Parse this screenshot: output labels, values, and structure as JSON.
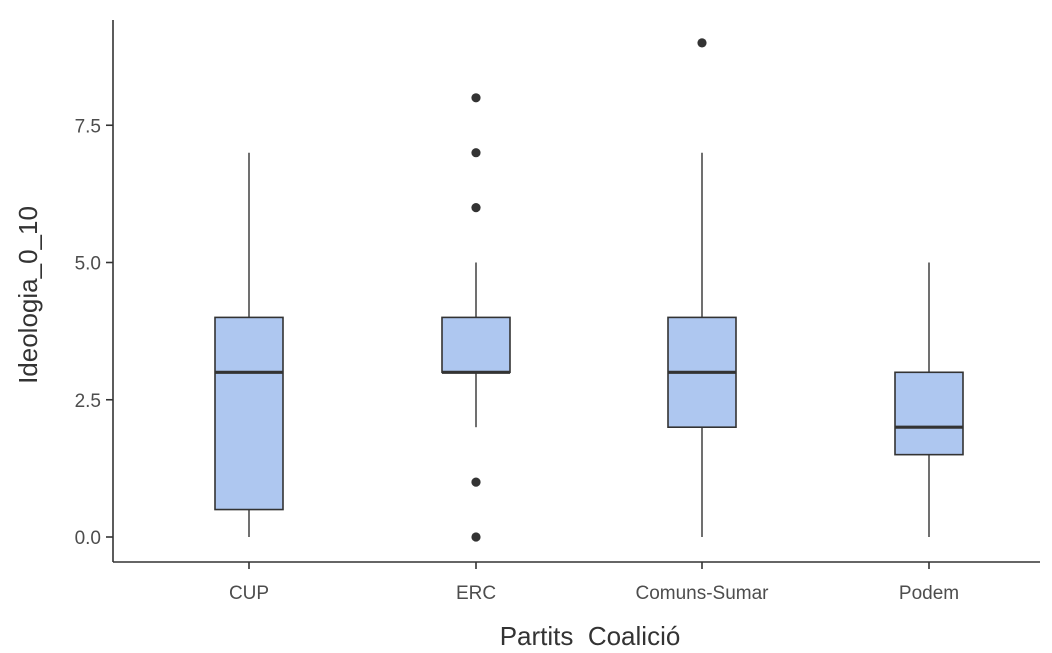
{
  "chart_data": {
    "type": "boxplot",
    "xlabel": "Partits  Coalició",
    "ylabel": "Ideologia_0_10",
    "ylim": [
      -0.45,
      9.45
    ],
    "y_ticks": [
      0.0,
      2.5,
      5.0,
      7.5
    ],
    "y_tick_labels": [
      "0.0",
      "2.5",
      "5.0",
      "7.5"
    ],
    "grid": false,
    "box_fill": "#aec7f0",
    "line_color": "#333333",
    "categories": [
      "CUP",
      "ERC",
      "Comuns-Sumar",
      "Podem"
    ],
    "boxes": [
      {
        "category": "CUP",
        "whisker_low": 0,
        "q1": 0.5,
        "median": 3,
        "q3": 4,
        "whisker_high": 7,
        "outliers": []
      },
      {
        "category": "ERC",
        "whisker_low": 2,
        "q1": 3,
        "median": 3,
        "q3": 4,
        "whisker_high": 5,
        "outliers": [
          0,
          1,
          6,
          7,
          8
        ]
      },
      {
        "category": "Comuns-Sumar",
        "whisker_low": 0,
        "q1": 2,
        "median": 3,
        "q3": 4,
        "whisker_high": 7,
        "outliers": [
          9
        ]
      },
      {
        "category": "Podem",
        "whisker_low": 0,
        "q1": 1.5,
        "median": 2,
        "q3": 3,
        "whisker_high": 5,
        "outliers": []
      }
    ]
  }
}
